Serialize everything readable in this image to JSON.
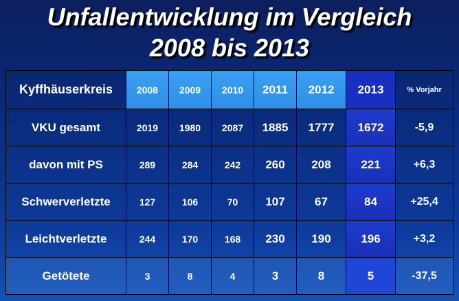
{
  "title": {
    "line1": "Unfallentwicklung im Vergleich",
    "line2": "2008 bis 2013"
  },
  "table": {
    "header": [
      "Kyffhäuserkreis",
      "2008",
      "2009",
      "2010",
      "2011",
      "2012",
      "2013",
      "% Vorjahr"
    ],
    "rows": [
      [
        "VKU gesamt",
        "2019",
        "1980",
        "2087",
        "1885",
        "1777",
        "1672",
        "-5,9"
      ],
      [
        "davon mit PS",
        "289",
        "284",
        "242",
        "260",
        "208",
        "221",
        "+6,3"
      ],
      [
        "Schwerverletzte",
        "127",
        "106",
        "70",
        "107",
        "67",
        "84",
        "+25,4"
      ],
      [
        "Leichtverletzte",
        "244",
        "170",
        "168",
        "230",
        "190",
        "196",
        "+3,2"
      ],
      [
        "Getötete",
        "3",
        "8",
        "4",
        "3",
        "8",
        "5",
        "-37,5"
      ]
    ]
  },
  "colors": {
    "header_light": "#2f8de6",
    "current_year": "#1a2fb8",
    "background": "#0a2a7a"
  }
}
